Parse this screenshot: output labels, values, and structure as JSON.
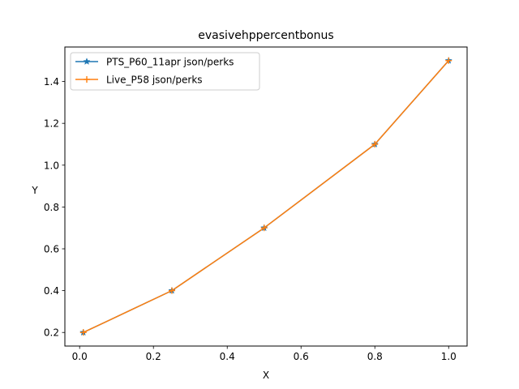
{
  "chart_data": {
    "type": "line",
    "title": "evasivehppercentbonus",
    "xlabel": "X",
    "ylabel": "Y",
    "xlim": [
      -0.04,
      1.05
    ],
    "ylim": [
      0.135,
      1.565
    ],
    "xticks": [
      0.0,
      0.2,
      0.4,
      0.6,
      0.8,
      1.0
    ],
    "xtick_labels": [
      "0.0",
      "0.2",
      "0.4",
      "0.6",
      "0.8",
      "1.0"
    ],
    "yticks": [
      0.2,
      0.4,
      0.6,
      0.8,
      1.0,
      1.2,
      1.4
    ],
    "ytick_labels": [
      "0.2",
      "0.4",
      "0.6",
      "0.8",
      "1.0",
      "1.2",
      "1.4"
    ],
    "grid": false,
    "legend_position": "top-left",
    "series": [
      {
        "name": "PTS_P60_11apr json/perks",
        "color": "#1f77b4",
        "marker": "star",
        "x": [
          0.01,
          0.25,
          0.5,
          0.8,
          1.0
        ],
        "y": [
          0.2,
          0.4,
          0.7,
          1.1,
          1.5
        ]
      },
      {
        "name": "Live_P58 json/perks",
        "color": "#ff7f0e",
        "marker": "plus",
        "x": [
          0.01,
          0.25,
          0.5,
          0.8,
          1.0
        ],
        "y": [
          0.2,
          0.4,
          0.7,
          1.1,
          1.5
        ]
      }
    ]
  }
}
